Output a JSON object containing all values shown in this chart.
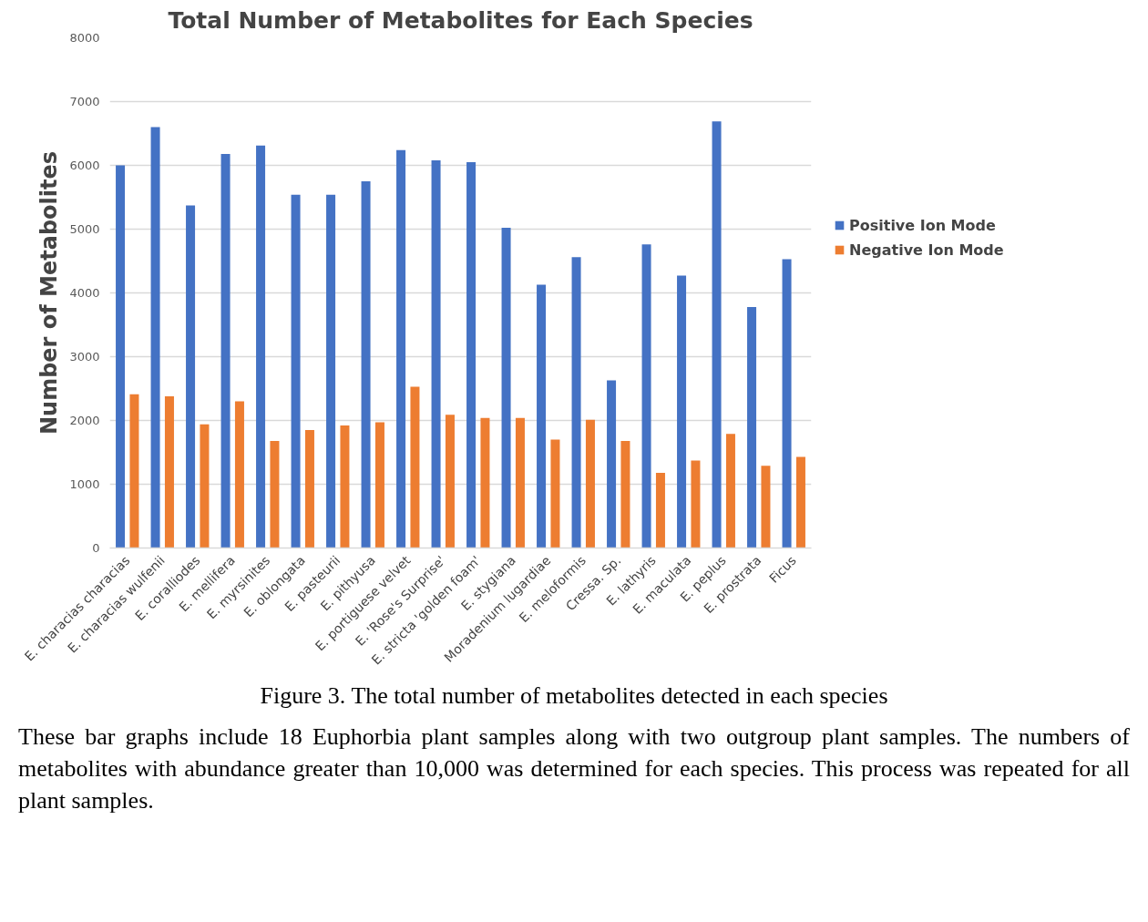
{
  "chart_data": {
    "type": "bar",
    "title": "Total Number of Metabolites for Each Species",
    "ylabel": "Number of Metabolites",
    "categories": [
      "E. characias characias",
      "E. characias wulfenii",
      "E. coralliodes",
      "E. mellifera",
      "E. myrsinites",
      "E. oblongata",
      "E. pasteurii",
      "E. pithyusa",
      "E. portiguese velvet",
      "E. 'Rose's Surprise'",
      "E. stricta 'golden foam'",
      "E. stygiana",
      "Moradenium lugardiae",
      "E. meloformis",
      "Cressa. Sp.",
      "E. lathyris",
      "E. maculata",
      "E. peplus",
      "E. prostrata",
      "Ficus"
    ],
    "series": [
      {
        "name": "Positive Ion Mode",
        "color": "#4472c4",
        "values": [
          6000,
          6600,
          5370,
          6180,
          6310,
          5540,
          5540,
          5750,
          6240,
          6080,
          6050,
          5020,
          4130,
          4560,
          2630,
          4760,
          4270,
          6690,
          3780,
          4530
        ]
      },
      {
        "name": "Negative Ion Mode",
        "color": "#ed7d31",
        "values": [
          2410,
          2380,
          1940,
          2300,
          1680,
          1850,
          1920,
          1970,
          2530,
          2090,
          2040,
          2040,
          1700,
          2010,
          1680,
          1180,
          1370,
          1790,
          1290,
          1430
        ]
      }
    ],
    "ylim": [
      0,
      8000
    ],
    "yticks": [
      0,
      1000,
      2000,
      3000,
      4000,
      5000,
      6000,
      7000,
      8000
    ],
    "grid": "y",
    "legend": "right",
    "annotations": [
      "Figure 3. The total number of metabolites detected in each species",
      "These bar graphs include 18 Euphorbia plant samples along with two outgroup plant samples. The numbers of metabolites with abundance greater than 10,000 was determined for each species. This process was repeated for all plant samples."
    ]
  }
}
